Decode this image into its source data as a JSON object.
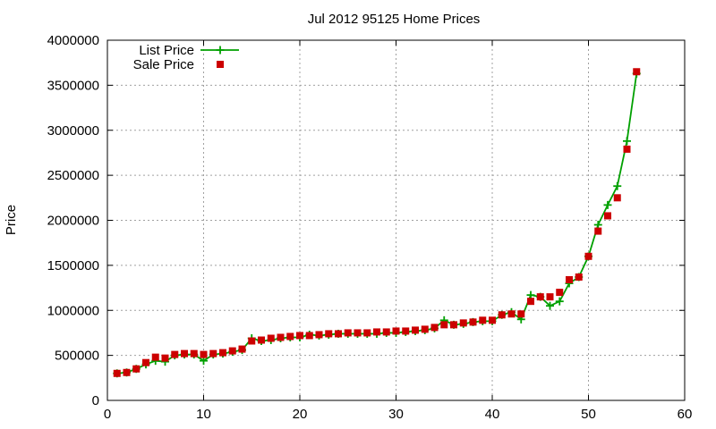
{
  "chart_data": {
    "type": "line",
    "title": "Jul 2012 95125 Home Prices",
    "xlabel": "",
    "ylabel": "Price",
    "xlim": [
      0,
      60
    ],
    "ylim": [
      0,
      4000000
    ],
    "x_ticks": [
      0,
      10,
      20,
      30,
      40,
      50,
      60
    ],
    "y_ticks": [
      0,
      500000,
      1000000,
      1500000,
      2000000,
      2500000,
      3000000,
      3500000,
      4000000
    ],
    "x_tick_labels": [
      "0",
      "10",
      "20",
      "30",
      "40",
      "50",
      "60"
    ],
    "y_tick_labels": [
      "0",
      "500000",
      "1000000",
      "1500000",
      "2000000",
      "2500000",
      "3000000",
      "3500000",
      "4000000"
    ],
    "grid": true,
    "legend_position": "top-left",
    "x": [
      1,
      2,
      3,
      4,
      5,
      6,
      7,
      8,
      9,
      10,
      11,
      12,
      13,
      14,
      15,
      16,
      17,
      18,
      19,
      20,
      21,
      22,
      23,
      24,
      25,
      26,
      27,
      28,
      29,
      30,
      31,
      32,
      33,
      34,
      35,
      36,
      37,
      38,
      39,
      40,
      41,
      42,
      43,
      44,
      45,
      46,
      47,
      48,
      49,
      50,
      51,
      52,
      53,
      54,
      55
    ],
    "series": [
      {
        "name": "List Price",
        "color": "#00a000",
        "marker": "plus",
        "line": true,
        "values": [
          300000,
          310000,
          350000,
          400000,
          440000,
          430000,
          500000,
          510000,
          510000,
          440000,
          510000,
          520000,
          540000,
          560000,
          690000,
          660000,
          670000,
          690000,
          700000,
          700000,
          730000,
          720000,
          730000,
          740000,
          740000,
          740000,
          740000,
          740000,
          750000,
          750000,
          760000,
          770000,
          780000,
          800000,
          890000,
          840000,
          850000,
          870000,
          880000,
          880000,
          950000,
          980000,
          900000,
          1170000,
          1150000,
          1050000,
          1100000,
          1300000,
          1370000,
          1600000,
          1950000,
          2170000,
          2380000,
          2880000,
          3630000
        ]
      },
      {
        "name": "Sale Price",
        "color": "#cc0000",
        "marker": "square",
        "line": false,
        "values": [
          300000,
          310000,
          350000,
          420000,
          480000,
          470000,
          510000,
          520000,
          520000,
          510000,
          520000,
          530000,
          550000,
          570000,
          660000,
          670000,
          690000,
          700000,
          710000,
          720000,
          720000,
          730000,
          740000,
          740000,
          750000,
          750000,
          750000,
          760000,
          760000,
          770000,
          770000,
          780000,
          790000,
          810000,
          840000,
          840000,
          860000,
          870000,
          890000,
          890000,
          950000,
          960000,
          960000,
          1100000,
          1150000,
          1150000,
          1200000,
          1340000,
          1370000,
          1600000,
          1880000,
          2050000,
          2250000,
          2790000,
          3650000
        ]
      }
    ]
  }
}
